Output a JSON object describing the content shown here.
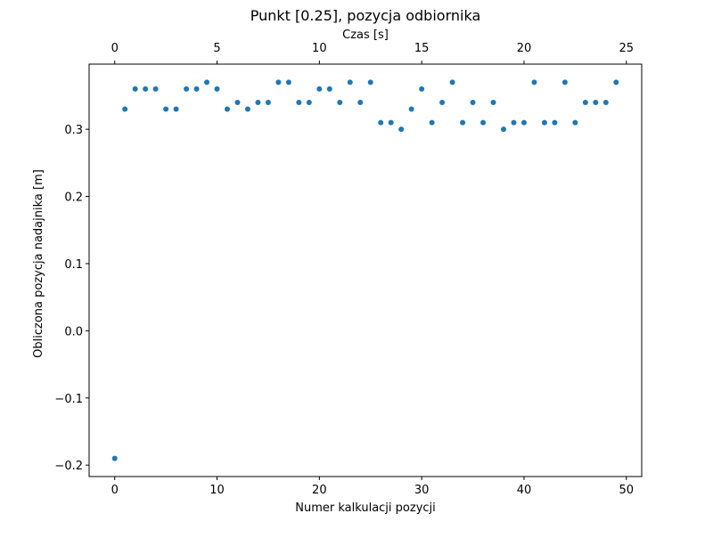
{
  "chart_data": {
    "type": "scatter",
    "title": "Punkt [0.25], pozycja odbiornika",
    "xlabel": "Numer kalkulacji pozycji",
    "ylabel": "Obliczona pozycja nadajnika [m]",
    "x2label": "Czas [s]",
    "xlim": [
      -2.5,
      51.5
    ],
    "ylim": [
      -0.217,
      0.397
    ],
    "x2lim": [
      -1.25,
      25.75
    ],
    "xticks": [
      0,
      10,
      20,
      30,
      40,
      50
    ],
    "yticks": [
      -0.2,
      -0.1,
      0.0,
      0.1,
      0.2,
      0.3
    ],
    "ytick_labels": [
      "−0.2",
      "−0.1",
      "0.0",
      "0.1",
      "0.2",
      "0.3"
    ],
    "x2ticks": [
      0,
      5,
      10,
      15,
      20,
      25
    ],
    "grid": false,
    "marker_color": "#1f77b4",
    "x": [
      0,
      1,
      2,
      3,
      4,
      5,
      6,
      7,
      8,
      9,
      10,
      11,
      12,
      13,
      14,
      15,
      16,
      17,
      18,
      19,
      20,
      21,
      22,
      23,
      24,
      25,
      26,
      27,
      28,
      29,
      30,
      31,
      32,
      33,
      34,
      35,
      36,
      37,
      38,
      39,
      40,
      41,
      42,
      43,
      44,
      45,
      46,
      47,
      48,
      49
    ],
    "y": [
      -0.19,
      0.33,
      0.36,
      0.36,
      0.36,
      0.33,
      0.33,
      0.36,
      0.36,
      0.37,
      0.36,
      0.33,
      0.34,
      0.33,
      0.34,
      0.34,
      0.37,
      0.37,
      0.34,
      0.34,
      0.36,
      0.36,
      0.34,
      0.37,
      0.34,
      0.37,
      0.31,
      0.31,
      0.3,
      0.33,
      0.36,
      0.31,
      0.34,
      0.37,
      0.31,
      0.34,
      0.31,
      0.34,
      0.3,
      0.31,
      0.31,
      0.37,
      0.31,
      0.31,
      0.37,
      0.31,
      0.34,
      0.34,
      0.34,
      0.37
    ]
  }
}
